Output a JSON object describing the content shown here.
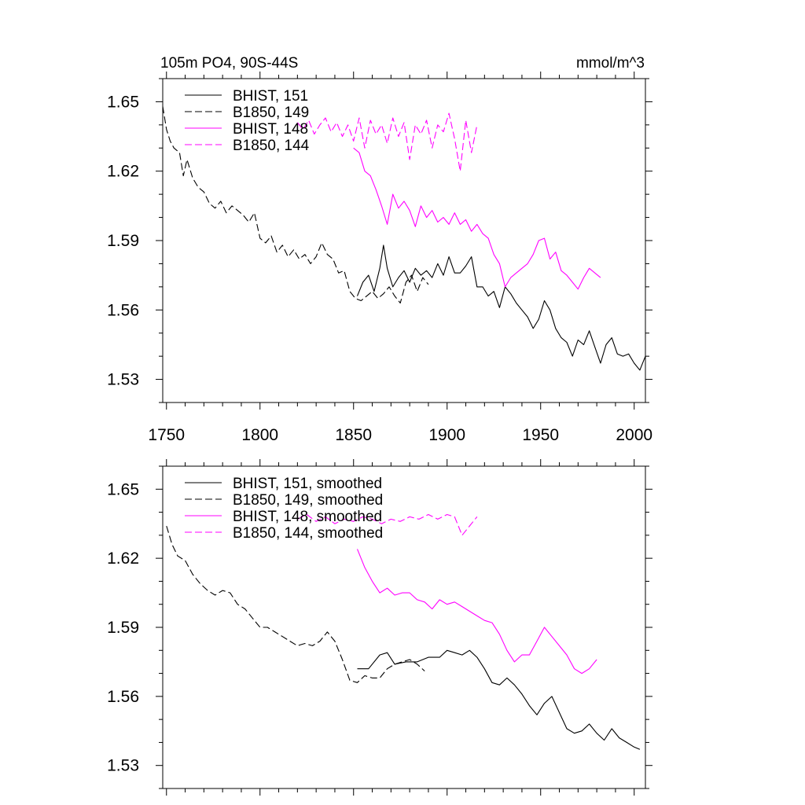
{
  "figure": {
    "title_left": "105m PO4, 90S-44S",
    "title_right": "mmol/m^3"
  },
  "chart_data": [
    {
      "type": "line",
      "title": "105m PO4, 90S-44S",
      "units": "mmol/m^3",
      "xlim": [
        1748,
        2006
      ],
      "ylim": [
        1.52,
        1.66
      ],
      "xticks": [
        1750,
        1800,
        1850,
        1900,
        1950,
        2000
      ],
      "yticks": [
        1.53,
        1.56,
        1.59,
        1.62,
        1.65
      ],
      "legend_position": "top-left",
      "series": [
        {
          "name": "BHIST, 151",
          "color": "#000000",
          "dash": "solid",
          "x": [
            1852,
            1855,
            1858,
            1861,
            1864,
            1866,
            1868,
            1871,
            1874,
            1877,
            1880,
            1883,
            1886,
            1889,
            1892,
            1895,
            1898,
            1901,
            1904,
            1907,
            1910,
            1913,
            1916,
            1919,
            1922,
            1925,
            1928,
            1931,
            1934,
            1937,
            1940,
            1943,
            1946,
            1949,
            1952,
            1955,
            1958,
            1961,
            1964,
            1967,
            1970,
            1973,
            1976,
            1979,
            1982,
            1985,
            1988,
            1991,
            1994,
            1997,
            2000,
            2003,
            2006
          ],
          "y": [
            1.566,
            1.572,
            1.575,
            1.568,
            1.578,
            1.588,
            1.578,
            1.57,
            1.574,
            1.577,
            1.572,
            1.578,
            1.575,
            1.577,
            1.574,
            1.58,
            1.575,
            1.583,
            1.576,
            1.576,
            1.579,
            1.583,
            1.57,
            1.57,
            1.566,
            1.568,
            1.561,
            1.57,
            1.567,
            1.563,
            1.56,
            1.557,
            1.552,
            1.556,
            1.564,
            1.56,
            1.552,
            1.548,
            1.546,
            1.54,
            1.547,
            1.545,
            1.551,
            1.544,
            1.537,
            1.545,
            1.548,
            1.541,
            1.54,
            1.541,
            1.537,
            1.534,
            1.54
          ]
        },
        {
          "name": "B1850, 149",
          "color": "#000000",
          "dash": "dashed",
          "x": [
            1748,
            1750,
            1752,
            1754,
            1757,
            1759,
            1761,
            1764,
            1767,
            1770,
            1773,
            1776,
            1779,
            1782,
            1785,
            1788,
            1791,
            1794,
            1797,
            1800,
            1803,
            1806,
            1809,
            1812,
            1815,
            1818,
            1821,
            1824,
            1827,
            1830,
            1833,
            1836,
            1839,
            1842,
            1845,
            1848,
            1851,
            1854,
            1857,
            1860,
            1863,
            1866,
            1869,
            1872,
            1875,
            1878,
            1881,
            1884,
            1887,
            1890
          ],
          "y": [
            1.648,
            1.638,
            1.633,
            1.63,
            1.628,
            1.618,
            1.625,
            1.617,
            1.613,
            1.611,
            1.606,
            1.604,
            1.607,
            1.602,
            1.605,
            1.603,
            1.601,
            1.598,
            1.602,
            1.591,
            1.589,
            1.592,
            1.585,
            1.588,
            1.583,
            1.586,
            1.582,
            1.584,
            1.58,
            1.583,
            1.589,
            1.584,
            1.582,
            1.576,
            1.577,
            1.568,
            1.565,
            1.564,
            1.566,
            1.568,
            1.565,
            1.567,
            1.57,
            1.566,
            1.563,
            1.572,
            1.575,
            1.568,
            1.574,
            1.571
          ]
        },
        {
          "name": "BHIST, 148",
          "color": "#ff00ff",
          "dash": "solid",
          "x": [
            1850,
            1853,
            1856,
            1859,
            1862,
            1865,
            1868,
            1871,
            1874,
            1877,
            1880,
            1883,
            1886,
            1889,
            1892,
            1895,
            1898,
            1901,
            1904,
            1907,
            1910,
            1913,
            1916,
            1919,
            1922,
            1925,
            1928,
            1931,
            1934,
            1937,
            1940,
            1943,
            1946,
            1949,
            1952,
            1955,
            1958,
            1961,
            1964,
            1967,
            1970,
            1973,
            1976,
            1979,
            1982
          ],
          "y": [
            1.63,
            1.628,
            1.62,
            1.618,
            1.612,
            1.605,
            1.597,
            1.61,
            1.604,
            1.607,
            1.603,
            1.596,
            1.605,
            1.6,
            1.603,
            1.598,
            1.6,
            1.597,
            1.602,
            1.597,
            1.599,
            1.594,
            1.597,
            1.593,
            1.591,
            1.584,
            1.58,
            1.57,
            1.574,
            1.576,
            1.578,
            1.58,
            1.584,
            1.59,
            1.591,
            1.582,
            1.585,
            1.577,
            1.575,
            1.572,
            1.569,
            1.574,
            1.578,
            1.576,
            1.574
          ]
        },
        {
          "name": "B1850, 144",
          "color": "#ff00ff",
          "dash": "dashed",
          "x": [
            1820,
            1823,
            1826,
            1829,
            1832,
            1835,
            1838,
            1841,
            1844,
            1847,
            1850,
            1853,
            1856,
            1859,
            1862,
            1865,
            1868,
            1871,
            1874,
            1877,
            1880,
            1883,
            1886,
            1889,
            1892,
            1895,
            1898,
            1901,
            1904,
            1907,
            1910,
            1913,
            1916
          ],
          "y": [
            1.641,
            1.638,
            1.642,
            1.636,
            1.64,
            1.643,
            1.637,
            1.641,
            1.635,
            1.64,
            1.633,
            1.643,
            1.63,
            1.642,
            1.636,
            1.64,
            1.632,
            1.643,
            1.635,
            1.641,
            1.625,
            1.64,
            1.636,
            1.642,
            1.63,
            1.64,
            1.637,
            1.645,
            1.634,
            1.62,
            1.642,
            1.628,
            1.64
          ]
        }
      ]
    },
    {
      "type": "line",
      "xlim": [
        1748,
        2006
      ],
      "ylim": [
        1.52,
        1.66
      ],
      "yticks": [
        1.53,
        1.56,
        1.59,
        1.62,
        1.65
      ],
      "legend_position": "top-left",
      "series": [
        {
          "name": "BHIST, 151, smoothed",
          "color": "#000000",
          "dash": "solid",
          "x": [
            1852,
            1858,
            1864,
            1868,
            1872,
            1878,
            1884,
            1890,
            1896,
            1900,
            1904,
            1908,
            1912,
            1916,
            1920,
            1924,
            1928,
            1932,
            1936,
            1940,
            1944,
            1948,
            1952,
            1956,
            1960,
            1964,
            1968,
            1972,
            1976,
            1980,
            1984,
            1988,
            1992,
            1996,
            2000,
            2003
          ],
          "y": [
            1.572,
            1.572,
            1.578,
            1.579,
            1.574,
            1.575,
            1.575,
            1.577,
            1.577,
            1.58,
            1.579,
            1.578,
            1.58,
            1.577,
            1.572,
            1.566,
            1.565,
            1.568,
            1.565,
            1.561,
            1.556,
            1.552,
            1.557,
            1.56,
            1.553,
            1.546,
            1.544,
            1.545,
            1.548,
            1.544,
            1.541,
            1.546,
            1.542,
            1.54,
            1.538,
            1.537
          ]
        },
        {
          "name": "B1850, 149, smoothed",
          "color": "#000000",
          "dash": "dashed",
          "x": [
            1750,
            1753,
            1756,
            1760,
            1764,
            1768,
            1772,
            1776,
            1780,
            1784,
            1788,
            1792,
            1796,
            1800,
            1804,
            1808,
            1812,
            1816,
            1820,
            1824,
            1828,
            1832,
            1836,
            1840,
            1844,
            1848,
            1852,
            1856,
            1860,
            1864,
            1868,
            1872,
            1876,
            1880,
            1884,
            1888
          ],
          "y": [
            1.634,
            1.626,
            1.621,
            1.619,
            1.613,
            1.609,
            1.606,
            1.604,
            1.606,
            1.605,
            1.6,
            1.598,
            1.594,
            1.59,
            1.59,
            1.588,
            1.586,
            1.584,
            1.582,
            1.583,
            1.582,
            1.584,
            1.588,
            1.584,
            1.576,
            1.567,
            1.566,
            1.569,
            1.568,
            1.568,
            1.572,
            1.574,
            1.575,
            1.576,
            1.574,
            1.571
          ]
        },
        {
          "name": "BHIST, 148, smoothed",
          "color": "#ff00ff",
          "dash": "solid",
          "x": [
            1852,
            1856,
            1860,
            1864,
            1868,
            1872,
            1876,
            1880,
            1884,
            1888,
            1892,
            1896,
            1900,
            1904,
            1908,
            1912,
            1916,
            1920,
            1924,
            1928,
            1932,
            1936,
            1940,
            1944,
            1948,
            1952,
            1956,
            1960,
            1964,
            1968,
            1972,
            1976,
            1980
          ],
          "y": [
            1.624,
            1.616,
            1.61,
            1.605,
            1.607,
            1.604,
            1.605,
            1.605,
            1.602,
            1.601,
            1.598,
            1.602,
            1.6,
            1.601,
            1.599,
            1.597,
            1.595,
            1.593,
            1.592,
            1.587,
            1.58,
            1.575,
            1.578,
            1.578,
            1.584,
            1.59,
            1.586,
            1.582,
            1.578,
            1.572,
            1.57,
            1.572,
            1.576
          ]
        },
        {
          "name": "B1850, 144, smoothed",
          "color": "#ff00ff",
          "dash": "dashed",
          "x": [
            1820,
            1825,
            1830,
            1835,
            1840,
            1845,
            1850,
            1855,
            1860,
            1865,
            1870,
            1875,
            1880,
            1885,
            1890,
            1895,
            1900,
            1904,
            1908,
            1912,
            1916
          ],
          "y": [
            1.637,
            1.639,
            1.636,
            1.638,
            1.635,
            1.637,
            1.636,
            1.638,
            1.637,
            1.635,
            1.637,
            1.636,
            1.638,
            1.637,
            1.639,
            1.637,
            1.639,
            1.638,
            1.63,
            1.634,
            1.638
          ]
        }
      ]
    }
  ]
}
